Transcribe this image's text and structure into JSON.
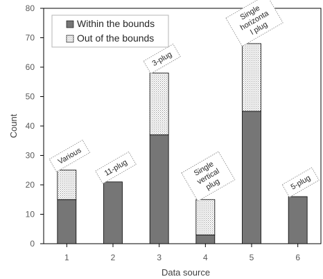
{
  "chart_data": {
    "type": "bar",
    "stacked": true,
    "categories": [
      "1",
      "2",
      "3",
      "4",
      "5",
      "6"
    ],
    "series": [
      {
        "name": "Within the bounds",
        "values": [
          15,
          21,
          37,
          3,
          45,
          16
        ],
        "color": "#767676",
        "pattern": "solid"
      },
      {
        "name": "Out of the bounds",
        "values": [
          10,
          0,
          21,
          12,
          23,
          0
        ],
        "color": "#ffffff",
        "pattern": "dotted"
      }
    ],
    "xlabel": "Data source",
    "ylabel": "Count",
    "ylim": [
      0,
      80
    ],
    "yticks": [
      0,
      10,
      20,
      30,
      40,
      50,
      60,
      70,
      80
    ],
    "grid": false,
    "legend_position": "top-left",
    "annotations": [
      {
        "category": "1",
        "lines": [
          "Various"
        ]
      },
      {
        "category": "2",
        "lines": [
          "11-plug"
        ]
      },
      {
        "category": "3",
        "lines": [
          "3-plug"
        ]
      },
      {
        "category": "4",
        "lines": [
          "Single",
          "vertical",
          "plug"
        ]
      },
      {
        "category": "5",
        "lines": [
          "Single",
          "horizonta",
          "l plug"
        ]
      },
      {
        "category": "6",
        "lines": [
          "5-plug"
        ]
      }
    ]
  }
}
